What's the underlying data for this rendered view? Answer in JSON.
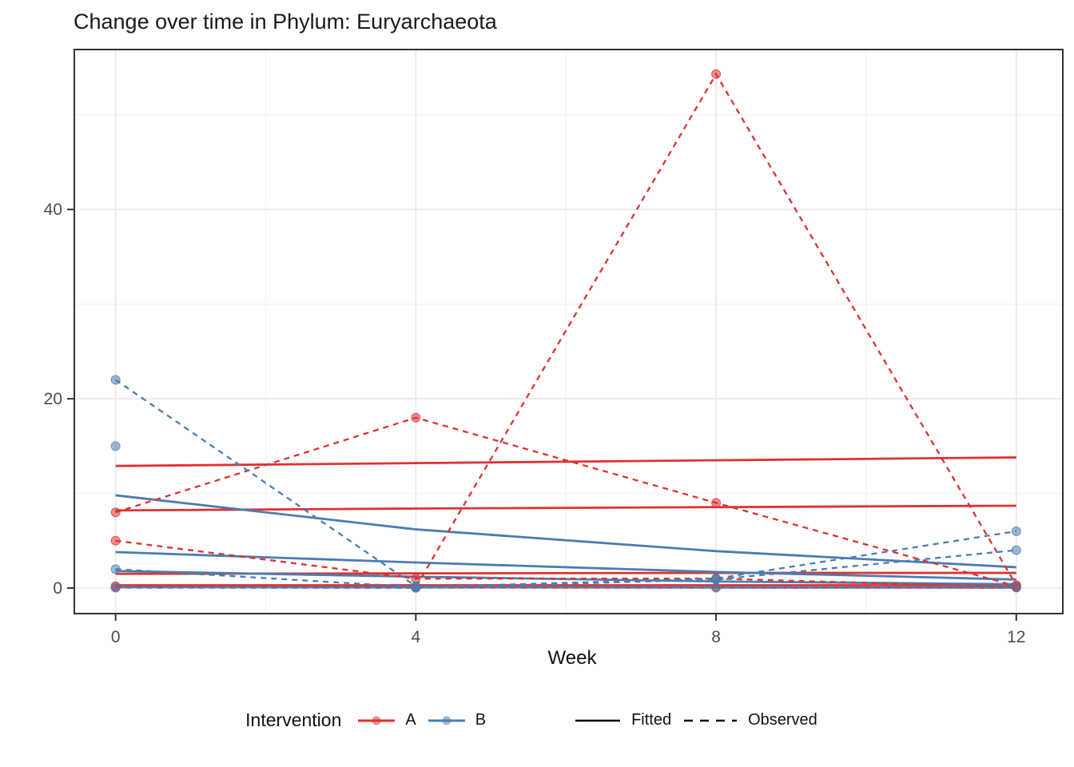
{
  "title": "Change over time in Phylum: Euryarchaeota",
  "legend": {
    "title": "Intervention",
    "group_a_label": "A",
    "group_b_label": "B",
    "fitted_label": "Fitted",
    "observed_label": "Observed"
  },
  "colors": {
    "group_a": "#DF3230",
    "group_b": "#4A7DB1",
    "legend_line": "#000000",
    "grid_major": "#E9E9E9",
    "grid_minor": "#F4F4F4",
    "panel_border": "#333333",
    "tick_mark": "#333333",
    "tick_text": "#4D4D4D"
  },
  "chart_data": {
    "type": "line",
    "title": "Change over time in Phylum: Euryarchaeota",
    "xlabel": "Week",
    "ylabel": "",
    "x": [
      0,
      4,
      8,
      12
    ],
    "x_tick_labels": [
      "0",
      "4",
      "8",
      "12"
    ],
    "y_ticks": [
      0,
      20,
      40
    ],
    "y_tick_labels": [
      "0",
      "20",
      "40"
    ],
    "x_minor_ticks": [
      2,
      6,
      10
    ],
    "y_minor_ticks": [
      10,
      30,
      50
    ],
    "xlim": [
      -0.55,
      12.62
    ],
    "ylim": [
      -2.7,
      56.9
    ],
    "grid": true,
    "legend_position": "bottom",
    "legend_title": "Intervention",
    "groups": [
      {
        "name": "A",
        "color_key": "group_a"
      },
      {
        "name": "B",
        "color_key": "group_b"
      }
    ],
    "linetypes": [
      {
        "name": "Fitted",
        "style": "solid"
      },
      {
        "name": "Observed",
        "style": "dashed"
      }
    ],
    "series": [
      {
        "id": "fitted-A-1",
        "group": "A",
        "linetype": "Fitted",
        "values": [
          12.9,
          13.2,
          13.5,
          13.8
        ],
        "has_points": false
      },
      {
        "id": "fitted-A-2",
        "group": "A",
        "linetype": "Fitted",
        "values": [
          8.2,
          8.4,
          8.55,
          8.7
        ],
        "has_points": false
      },
      {
        "id": "fitted-A-3",
        "group": "A",
        "linetype": "Fitted",
        "values": [
          1.5,
          1.55,
          1.6,
          1.6
        ],
        "has_points": false
      },
      {
        "id": "fitted-A-4",
        "group": "A",
        "linetype": "Fitted",
        "values": [
          0.3,
          0.3,
          0.3,
          0.3
        ],
        "has_points": false
      },
      {
        "id": "fitted-B-1",
        "group": "B",
        "linetype": "Fitted",
        "values": [
          9.8,
          6.2,
          3.9,
          2.2
        ],
        "has_points": false
      },
      {
        "id": "fitted-B-2",
        "group": "B",
        "linetype": "Fitted",
        "values": [
          3.8,
          2.7,
          1.7,
          0.9
        ],
        "has_points": false
      },
      {
        "id": "fitted-B-3",
        "group": "B",
        "linetype": "Fitted",
        "values": [
          1.8,
          1.2,
          0.7,
          0.4
        ],
        "has_points": false
      },
      {
        "id": "fitted-B-4",
        "group": "B",
        "linetype": "Fitted",
        "values": [
          0.1,
          0.08,
          0.06,
          0.05
        ],
        "has_points": false
      },
      {
        "id": "observed-A-1",
        "group": "A",
        "linetype": "Observed",
        "values": [
          8,
          18,
          9,
          0.2
        ],
        "has_points": true
      },
      {
        "id": "observed-A-2",
        "group": "A",
        "linetype": "Observed",
        "values": [
          5,
          1,
          1,
          0.1
        ],
        "has_points": true
      },
      {
        "id": "observed-A-3",
        "group": "A",
        "linetype": "Observed",
        "values": [
          0.2,
          0.1,
          54.3,
          0.3
        ],
        "has_points": true
      },
      {
        "id": "observed-A-4",
        "group": "A",
        "linetype": "Observed",
        "values": [
          0.05,
          0.05,
          0.05,
          0.05
        ],
        "has_points": true
      },
      {
        "id": "observed-B-1",
        "group": "B",
        "linetype": "Observed",
        "values": [
          22,
          0.2,
          0.05,
          0.1
        ],
        "has_points": true
      },
      {
        "id": "observed-B-2",
        "group": "B",
        "linetype": "Observed",
        "values": [
          15,
          null,
          null,
          null
        ],
        "has_points": true
      },
      {
        "id": "observed-B-3",
        "group": "B",
        "linetype": "Observed",
        "values": [
          2,
          0.1,
          1.0,
          6
        ],
        "has_points": true
      },
      {
        "id": "observed-B-4",
        "group": "B",
        "linetype": "Observed",
        "values": [
          0.05,
          0.02,
          0.9,
          4
        ],
        "has_points": true
      }
    ]
  }
}
